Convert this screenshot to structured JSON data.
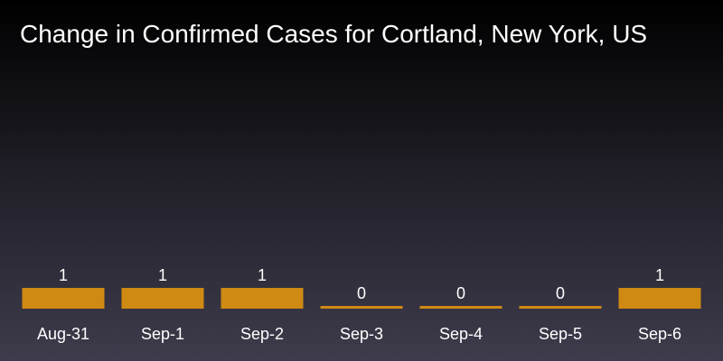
{
  "chart_data": {
    "type": "bar",
    "title": "Change in Confirmed Cases for Cortland, New York, US",
    "categories": [
      "Aug-31",
      "Sep-1",
      "Sep-2",
      "Sep-3",
      "Sep-4",
      "Sep-5",
      "Sep-6"
    ],
    "values": [
      1,
      1,
      1,
      0,
      0,
      0,
      1
    ],
    "xlabel": "",
    "ylabel": "",
    "ylim": [
      0,
      1
    ],
    "grid": false,
    "bar_color": "#cf8a13",
    "background_top": "#000000",
    "background_bottom": "#3e3c4c"
  }
}
